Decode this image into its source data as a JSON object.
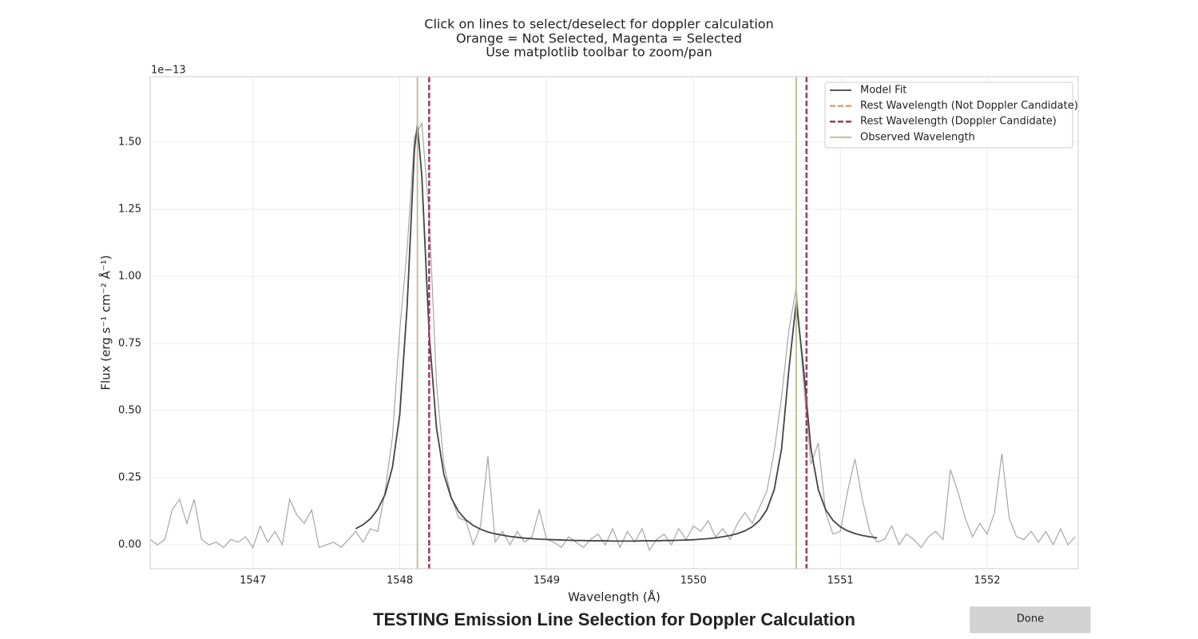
{
  "chart_data": {
    "type": "line",
    "title": [
      "Click on lines to select/deselect for doppler calculation",
      "Orange = Not Selected, Magenta = Selected",
      "Use matplotlib toolbar to zoom/pan"
    ],
    "heading": "TESTING Emission Line Selection for Doppler Calculation",
    "xlabel": "Wavelength (Å)",
    "ylabel": "Flux (erg s⁻¹ cm⁻² Å⁻¹)",
    "y_offset_label": "1e−13",
    "xlim": [
      1546.3,
      1552.62
    ],
    "ylim": [
      -0.089,
      1.744
    ],
    "xticks": [
      1547,
      1548,
      1549,
      1550,
      1551,
      1552
    ],
    "yticks": [
      {
        "value": 0,
        "label": "0.00"
      },
      {
        "value": 0.25,
        "label": "0.25"
      },
      {
        "value": 0.5,
        "label": "0.50"
      },
      {
        "value": 0.75,
        "label": "0.75"
      },
      {
        "value": 1,
        "label": "1.00"
      },
      {
        "value": 1.25,
        "label": "1.25"
      },
      {
        "value": 1.5,
        "label": "1.50"
      }
    ],
    "grid": true,
    "legend": "upper right",
    "series": [
      {
        "color": "#a6a6a6",
        "x": [
          1546.3,
          1546.35,
          1546.4,
          1546.45,
          1546.5,
          1546.55,
          1546.6,
          1546.65,
          1546.7,
          1546.75,
          1546.8,
          1546.85,
          1546.9,
          1546.95,
          1547,
          1547.05,
          1547.1,
          1547.15,
          1547.2,
          1547.25,
          1547.3,
          1547.35,
          1547.4,
          1547.45,
          1547.5,
          1547.55,
          1547.6,
          1547.65,
          1547.7,
          1547.75,
          1547.8,
          1547.85,
          1547.9,
          1547.95,
          1548,
          1548.05,
          1548.1,
          1548.15,
          1548.2,
          1548.25,
          1548.3,
          1548.35,
          1548.4,
          1548.45,
          1548.5,
          1548.55,
          1548.6,
          1548.65,
          1548.7,
          1548.75,
          1548.8,
          1548.85,
          1548.9,
          1548.95,
          1549,
          1549.05,
          1549.1,
          1549.15,
          1549.2,
          1549.25,
          1549.3,
          1549.35,
          1549.4,
          1549.45,
          1549.5,
          1549.55,
          1549.6,
          1549.65,
          1549.7,
          1549.75,
          1549.8,
          1549.85,
          1549.9,
          1549.95,
          1550,
          1550.05,
          1550.1,
          1550.15,
          1550.2,
          1550.25,
          1550.3,
          1550.35,
          1550.4,
          1550.45,
          1550.5,
          1550.55,
          1550.6,
          1550.65,
          1550.7,
          1550.75,
          1550.8,
          1550.85,
          1550.9,
          1550.95,
          1551,
          1551.05,
          1551.1,
          1551.15,
          1551.2,
          1551.25,
          1551.3,
          1551.35,
          1551.4,
          1551.45,
          1551.5,
          1551.55,
          1551.6,
          1551.65,
          1551.7,
          1551.75,
          1551.8,
          1551.85,
          1551.9,
          1551.95,
          1552,
          1552.05,
          1552.1,
          1552.15,
          1552.2,
          1552.25,
          1552.3,
          1552.35,
          1552.4,
          1552.45,
          1552.5,
          1552.55,
          1552.6
        ],
        "values": [
          0.02,
          0,
          0.02,
          0.13,
          0.17,
          0.08,
          0.17,
          0.02,
          0,
          0.01,
          -0.01,
          0.02,
          0.01,
          0.03,
          -0.01,
          0.07,
          0.01,
          0.05,
          0,
          0.17,
          0.11,
          0.08,
          0.13,
          -0.01,
          0,
          0.01,
          -0.01,
          0.02,
          0.05,
          0.01,
          0.06,
          0.05,
          0.2,
          0.4,
          0.8,
          1.1,
          1.52,
          1.57,
          1.23,
          0.6,
          0.3,
          0.18,
          0.1,
          0.09,
          0,
          0.07,
          0.33,
          0.01,
          0.05,
          0,
          0.05,
          0.01,
          0.03,
          0.13,
          0.02,
          0.01,
          -0.01,
          0.03,
          0.01,
          -0.01,
          0.02,
          0.04,
          0,
          0.06,
          -0.01,
          0.05,
          0.01,
          0.06,
          -0.02,
          0.02,
          0.04,
          0,
          0.06,
          0.02,
          0.07,
          0.05,
          0.09,
          0.03,
          0.06,
          0.02,
          0.08,
          0.12,
          0.08,
          0.14,
          0.2,
          0.35,
          0.55,
          0.8,
          0.96,
          0.6,
          0.3,
          0.38,
          0.12,
          0.04,
          0.05,
          0.2,
          0.32,
          0.17,
          0.05,
          0.01,
          0.02,
          0.07,
          0,
          0.04,
          0.02,
          -0.01,
          0.03,
          0.05,
          0.02,
          0.28,
          0.2,
          0.1,
          0.03,
          0.08,
          0.04,
          0.12,
          0.34,
          0.1,
          0.03,
          0.02,
          0.05,
          0.01,
          0.05,
          0,
          0.06,
          0,
          0.03
        ]
      },
      {
        "name": "Model Fit",
        "color": "#444444",
        "x": [
          1547.7,
          1547.75,
          1547.8,
          1547.85,
          1547.9,
          1547.95,
          1548,
          1548.05,
          1548.1,
          1548.12,
          1548.15,
          1548.2,
          1548.25,
          1548.3,
          1548.35,
          1548.4,
          1548.45,
          1548.5,
          1548.55,
          1548.6,
          1548.65,
          1548.7,
          1548.75,
          1548.8,
          1548.85,
          1548.9,
          1548.95,
          1549,
          1549.05,
          1549.1,
          1549.15,
          1549.2,
          1549.25,
          1549.3,
          1549.35,
          1549.4,
          1549.45,
          1549.5,
          1549.55,
          1549.6,
          1549.65,
          1549.7,
          1549.75,
          1549.8,
          1549.85,
          1549.9,
          1549.95,
          1550,
          1550.05,
          1550.1,
          1550.15,
          1550.2,
          1550.25,
          1550.3,
          1550.35,
          1550.4,
          1550.45,
          1550.5,
          1550.55,
          1550.6,
          1550.65,
          1550.7,
          1550.75,
          1550.8,
          1550.85,
          1550.9,
          1550.95,
          1551,
          1551.05,
          1551.1,
          1551.15,
          1551.2,
          1551.25
        ],
        "values": [
          0.06,
          0.075,
          0.097,
          0.132,
          0.188,
          0.289,
          0.486,
          0.889,
          1.474,
          1.565,
          1.374,
          0.786,
          0.435,
          0.263,
          0.175,
          0.124,
          0.093,
          0.072,
          0.058,
          0.048,
          0.041,
          0.036,
          0.031,
          0.028,
          0.025,
          0.023,
          0.021,
          0.02,
          0.019,
          0.018,
          0.017,
          0.016,
          0.016,
          0.015,
          0.015,
          0.015,
          0.014,
          0.014,
          0.014,
          0.014,
          0.015,
          0.015,
          0.015,
          0.016,
          0.016,
          0.017,
          0.018,
          0.019,
          0.021,
          0.023,
          0.026,
          0.03,
          0.035,
          0.042,
          0.052,
          0.067,
          0.091,
          0.131,
          0.206,
          0.358,
          0.654,
          0.907,
          0.654,
          0.358,
          0.206,
          0.131,
          0.091,
          0.067,
          0.052,
          0.042,
          0.035,
          0.03,
          0.026
        ]
      }
    ],
    "vlines": [
      {
        "name": "Rest Wavelength (Not Doppler Candidate)",
        "color": "#e0a072",
        "style": "dashed",
        "x": []
      },
      {
        "name": "Rest Wavelength (Doppler Candidate)",
        "color": "#a2395d",
        "style": "dashed",
        "x": [
          1548.2,
          1550.77
        ]
      },
      {
        "name": "Observed Wavelength",
        "color": "#b9bd94",
        "style": "solid",
        "x": [
          1548.12,
          1550.7
        ]
      }
    ]
  },
  "button": {
    "label": "Done"
  }
}
